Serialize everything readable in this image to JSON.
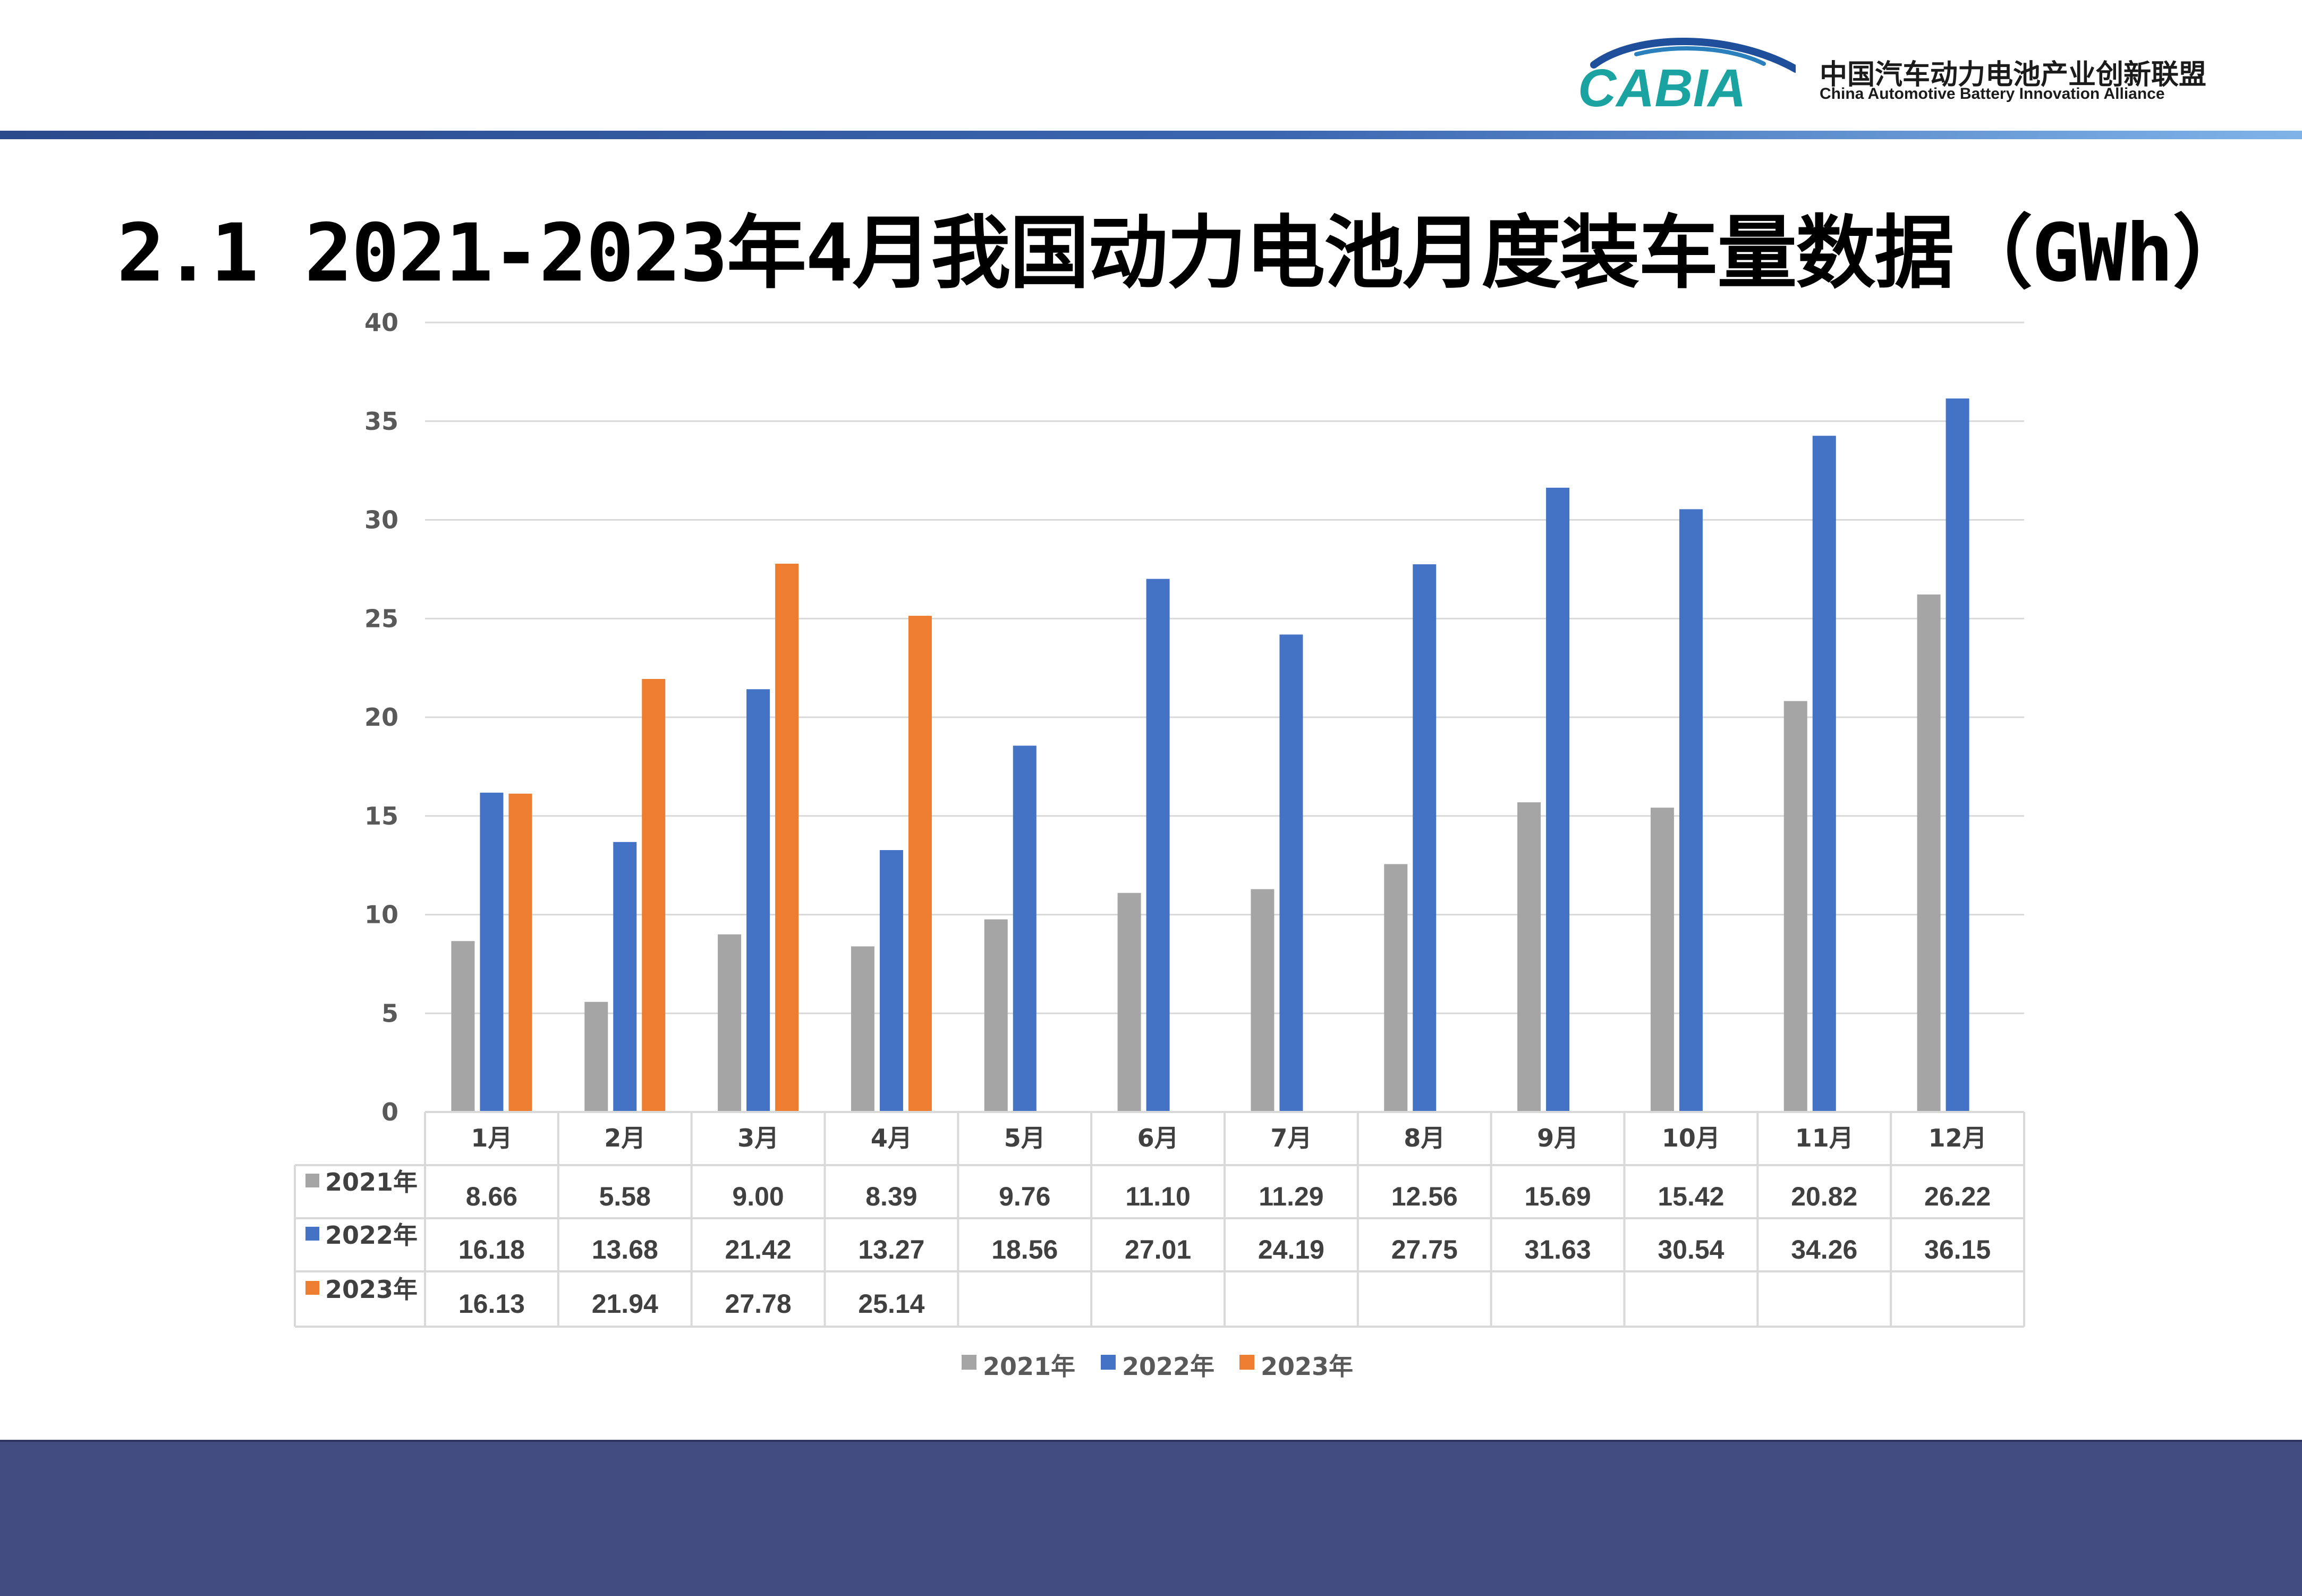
{
  "header": {
    "logo_text": "CABIA",
    "org_name_cn": "中国汽车动力电池产业创新联盟",
    "org_name_en": "China Automotive Battery Innovation Alliance"
  },
  "title": "2.1 2021-2023年4月我国动力电池月度装车量数据（GWh）",
  "colors": {
    "series_2021": "#a5a5a5",
    "series_2022": "#4472c4",
    "series_2023": "#ed7d31",
    "gridline": "#d9d9d9",
    "header_line": "#2b4a8c",
    "footer_band": "#414b7e"
  },
  "chart_data": {
    "type": "bar",
    "title": "",
    "xlabel": "",
    "ylabel": "",
    "ylim": [
      0,
      40
    ],
    "yticks": [
      0,
      5,
      10,
      15,
      20,
      25,
      30,
      35,
      40
    ],
    "grid": true,
    "legend_position": "bottom",
    "data_table": true,
    "categories": [
      "1月",
      "2月",
      "3月",
      "4月",
      "5月",
      "6月",
      "7月",
      "8月",
      "9月",
      "10月",
      "11月",
      "12月"
    ],
    "series": [
      {
        "name": "2021年",
        "values": [
          8.66,
          5.58,
          9.0,
          8.39,
          9.76,
          11.1,
          11.29,
          12.56,
          15.69,
          15.42,
          20.82,
          26.22
        ]
      },
      {
        "name": "2022年",
        "values": [
          16.18,
          13.68,
          21.42,
          13.27,
          18.56,
          27.01,
          24.19,
          27.75,
          31.63,
          30.54,
          34.26,
          36.15
        ]
      },
      {
        "name": "2023年",
        "values": [
          16.13,
          21.94,
          27.78,
          25.14,
          null,
          null,
          null,
          null,
          null,
          null,
          null,
          null
        ]
      }
    ],
    "table_values": [
      [
        "8.66",
        "5.58",
        "9.00",
        "8.39",
        "9.76",
        "11.10",
        "11.29",
        "12.56",
        "15.69",
        "15.42",
        "20.82",
        "26.22"
      ],
      [
        "16.18",
        "13.68",
        "21.42",
        "13.27",
        "18.56",
        "27.01",
        "24.19",
        "27.75",
        "31.63",
        "30.54",
        "34.26",
        "36.15"
      ],
      [
        "16.13",
        "21.94",
        "27.78",
        "25.14",
        "",
        "",
        "",
        "",
        "",
        "",
        "",
        ""
      ]
    ]
  }
}
